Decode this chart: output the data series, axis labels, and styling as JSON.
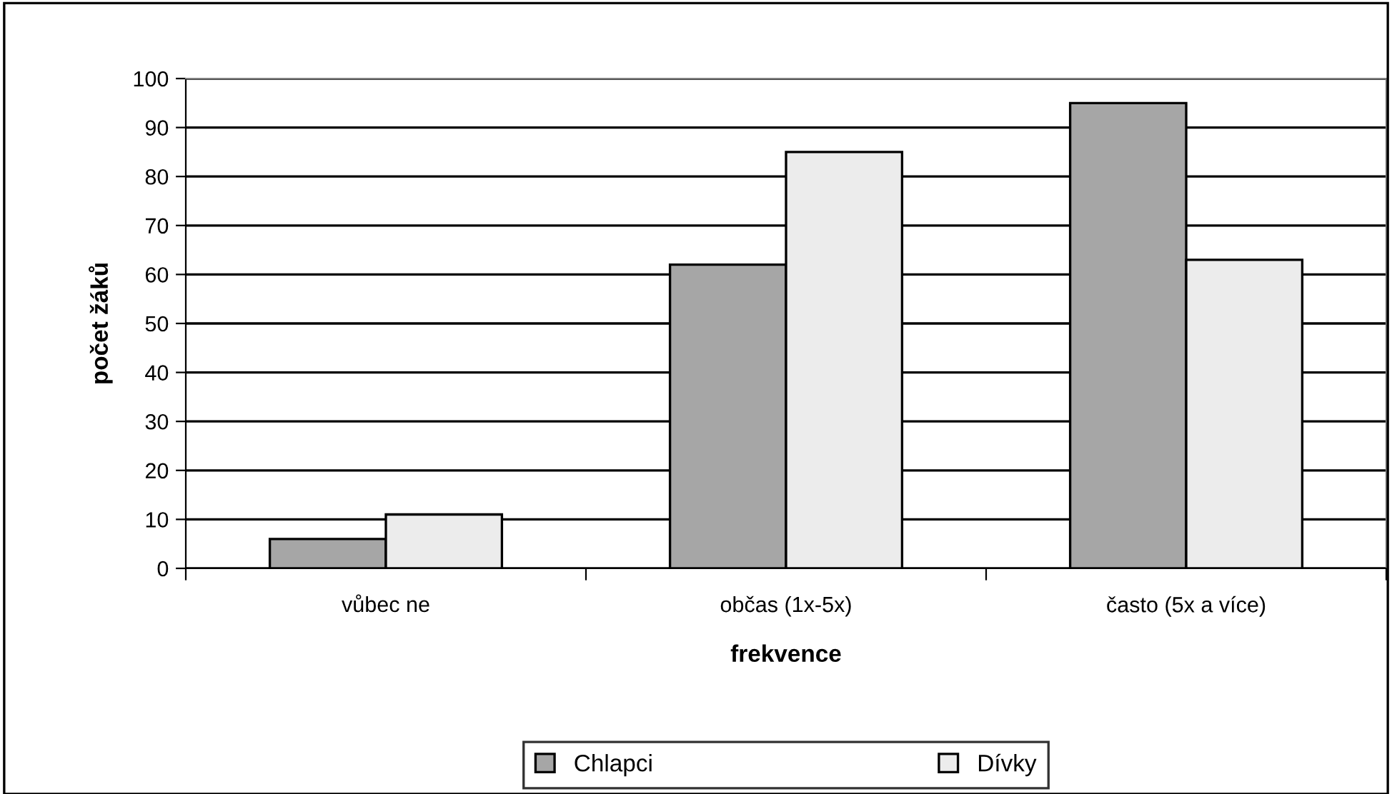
{
  "chart_data": {
    "type": "bar",
    "xlabel": "frekvence",
    "ylabel": "počet žáků",
    "categories": [
      "vůbec ne",
      "občas (1x-5x)",
      "často (5x a více)"
    ],
    "series": [
      {
        "name": "Chlapci",
        "color": "#a6a6a6",
        "values": [
          6,
          62,
          95
        ]
      },
      {
        "name": "Dívky",
        "color": "#ececec",
        "values": [
          11,
          85,
          63
        ]
      }
    ],
    "ylim": [
      0,
      100
    ],
    "yticks": [
      0,
      10,
      20,
      30,
      40,
      50,
      60,
      70,
      80,
      90,
      100
    ],
    "grid": "y",
    "legend": "bottom"
  }
}
